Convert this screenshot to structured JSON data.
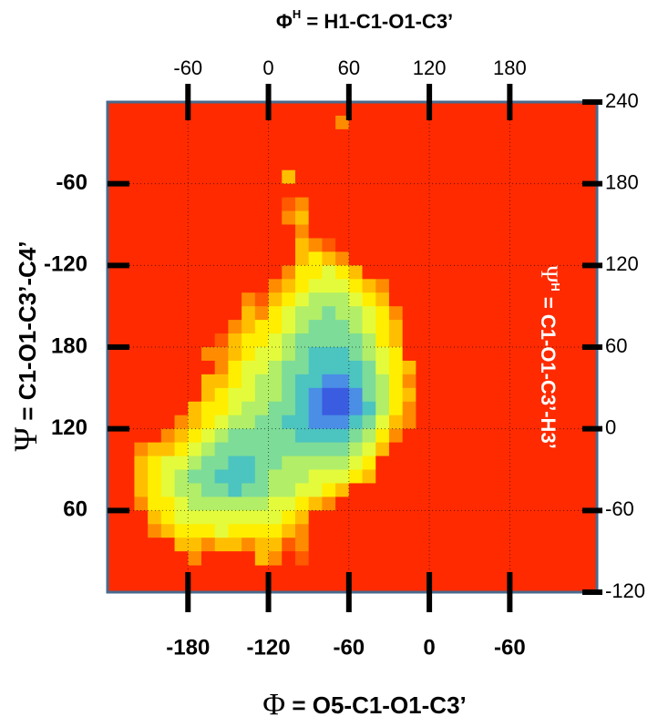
{
  "chart_data": {
    "type": "heatmap",
    "x2label": {
      "symbol": "Φ",
      "sup": "H",
      "rest": " = H1-C1-O1-C3’"
    },
    "xlabel": {
      "symbol": "Φ",
      "rest": " = O5-C1-O1-C3’"
    },
    "ylabel": {
      "symbol": "Ψ",
      "rest": " = C1-O1-C3’-C4’"
    },
    "y2label": {
      "symbol": "Ψ",
      "sup": "H",
      "rest": " = C1-O1-C3’-H3’"
    },
    "xlim": [
      -240,
      125
    ],
    "xticks": [
      -180,
      -120,
      -60,
      0,
      {
        "value": 60,
        "label": "-60"
      }
    ],
    "x2lim": [
      -120,
      245
    ],
    "x2ticks": [
      -60,
      0,
      60,
      120,
      180
    ],
    "ylim": [
      -360,
      0
    ],
    "yticks": [
      -60,
      -120,
      {
        "value": -180,
        "label": "180"
      },
      {
        "value": -240,
        "label": "120"
      },
      {
        "value": -300,
        "label": "60"
      }
    ],
    "y2lim": [
      -120,
      240
    ],
    "y2ticks": [
      240,
      180,
      120,
      60,
      0,
      -60,
      -120
    ],
    "grid": true,
    "colors": [
      "#ff2a00",
      "#ff5a00",
      "#ff8c00",
      "#ffbf00",
      "#ffee00",
      "#e4fb3c",
      "#b2ee68",
      "#7ddc98",
      "#4cc4c0",
      "#4a8ee6",
      "#3a5ce0"
    ],
    "x": [
      -225,
      -215,
      -205,
      -195,
      -185,
      -175,
      -165,
      -155,
      -145,
      -135,
      -125,
      -115,
      -105,
      -95,
      -85,
      -75,
      -65,
      -55,
      -45,
      -35,
      -25,
      -15,
      -5
    ],
    "y": [
      -15,
      -25,
      -35,
      -45,
      -55,
      -65,
      -75,
      -85,
      -95,
      -105,
      -115,
      -125,
      -135,
      -145,
      -155,
      -165,
      -175,
      -185,
      -195,
      -205,
      -215,
      -225,
      -235,
      -245,
      -255,
      -265,
      -275,
      -285,
      -295,
      -305,
      -315,
      -325,
      -335
    ],
    "z": [
      [
        0,
        0,
        0,
        0,
        0,
        0,
        0,
        0,
        0,
        0,
        0,
        0,
        0,
        0,
        0,
        0,
        2,
        0,
        0,
        0,
        0,
        0,
        0
      ],
      [
        0,
        0,
        0,
        0,
        0,
        0,
        0,
        0,
        0,
        0,
        0,
        0,
        0,
        0,
        0,
        0,
        0,
        0,
        0,
        0,
        0,
        0,
        0
      ],
      [
        0,
        0,
        0,
        0,
        0,
        0,
        0,
        0,
        0,
        0,
        0,
        0,
        0,
        0,
        0,
        0,
        0,
        0,
        0,
        0,
        0,
        0,
        0
      ],
      [
        0,
        0,
        0,
        0,
        0,
        0,
        0,
        0,
        0,
        0,
        0,
        0,
        0,
        0,
        0,
        0,
        0,
        0,
        0,
        0,
        0,
        0,
        0
      ],
      [
        0,
        0,
        0,
        0,
        0,
        0,
        0,
        0,
        0,
        0,
        0,
        0,
        3,
        0,
        0,
        0,
        0,
        0,
        0,
        0,
        0,
        0,
        0
      ],
      [
        0,
        0,
        0,
        0,
        0,
        0,
        0,
        0,
        0,
        0,
        0,
        0,
        0,
        0,
        0,
        0,
        0,
        0,
        0,
        0,
        0,
        0,
        0
      ],
      [
        0,
        0,
        0,
        0,
        0,
        0,
        0,
        0,
        0,
        0,
        0,
        0,
        1,
        2,
        0,
        0,
        0,
        0,
        0,
        0,
        0,
        0,
        0
      ],
      [
        0,
        0,
        0,
        0,
        0,
        0,
        0,
        0,
        0,
        0,
        0,
        0,
        2,
        3,
        0,
        0,
        0,
        0,
        0,
        0,
        0,
        0,
        0
      ],
      [
        0,
        0,
        0,
        0,
        0,
        0,
        0,
        0,
        0,
        0,
        0,
        0,
        0,
        2,
        0,
        0,
        0,
        0,
        0,
        0,
        0,
        0,
        0
      ],
      [
        0,
        0,
        0,
        0,
        0,
        0,
        0,
        0,
        0,
        0,
        0,
        0,
        0,
        3,
        2,
        1,
        0,
        0,
        0,
        0,
        0,
        0,
        0
      ],
      [
        0,
        0,
        0,
        0,
        0,
        0,
        0,
        0,
        0,
        0,
        0,
        0,
        0,
        3,
        4,
        3,
        2,
        0,
        0,
        0,
        0,
        0,
        0
      ],
      [
        0,
        0,
        0,
        0,
        0,
        0,
        0,
        0,
        0,
        0,
        0,
        0,
        2,
        4,
        4,
        5,
        4,
        3,
        0,
        0,
        0,
        0,
        0
      ],
      [
        0,
        0,
        0,
        0,
        0,
        0,
        0,
        0,
        0,
        0,
        0,
        2,
        3,
        4,
        5,
        5,
        5,
        4,
        3,
        2,
        0,
        0,
        0
      ],
      [
        0,
        0,
        0,
        0,
        0,
        0,
        0,
        0,
        0,
        2,
        1,
        3,
        4,
        5,
        6,
        6,
        6,
        5,
        4,
        3,
        0,
        0,
        0
      ],
      [
        0,
        0,
        0,
        0,
        0,
        0,
        0,
        0,
        0,
        3,
        2,
        4,
        5,
        6,
        6,
        7,
        6,
        6,
        5,
        4,
        2,
        0,
        0
      ],
      [
        0,
        0,
        0,
        0,
        0,
        0,
        0,
        0,
        2,
        3,
        4,
        4,
        5,
        6,
        7,
        7,
        7,
        6,
        5,
        4,
        3,
        0,
        0
      ],
      [
        0,
        0,
        0,
        0,
        0,
        0,
        0,
        1,
        3,
        4,
        4,
        5,
        6,
        7,
        7,
        7,
        7,
        7,
        6,
        4,
        3,
        0,
        0
      ],
      [
        0,
        0,
        0,
        0,
        0,
        0,
        2,
        2,
        3,
        4,
        5,
        5,
        6,
        7,
        8,
        8,
        8,
        7,
        6,
        5,
        4,
        0,
        0
      ],
      [
        0,
        0,
        0,
        0,
        0,
        0,
        0,
        2,
        4,
        5,
        5,
        6,
        7,
        7,
        8,
        8,
        8,
        8,
        7,
        5,
        4,
        3,
        0
      ],
      [
        0,
        0,
        0,
        0,
        0,
        0,
        3,
        3,
        4,
        5,
        6,
        6,
        7,
        8,
        8,
        9,
        9,
        8,
        7,
        6,
        4,
        2,
        0
      ],
      [
        0,
        0,
        0,
        0,
        0,
        0,
        3,
        4,
        5,
        5,
        6,
        6,
        7,
        8,
        9,
        10,
        10,
        9,
        7,
        6,
        4,
        3,
        0
      ],
      [
        0,
        0,
        0,
        0,
        0,
        3,
        4,
        4,
        5,
        6,
        6,
        7,
        7,
        8,
        9,
        10,
        10,
        9,
        8,
        6,
        4,
        2,
        0
      ],
      [
        0,
        0,
        0,
        0,
        2,
        3,
        4,
        5,
        6,
        6,
        7,
        7,
        8,
        8,
        9,
        9,
        9,
        8,
        7,
        5,
        3,
        2,
        0
      ],
      [
        0,
        0,
        0,
        2,
        3,
        4,
        5,
        6,
        7,
        7,
        7,
        7,
        7,
        8,
        8,
        8,
        8,
        7,
        6,
        4,
        2,
        0,
        0
      ],
      [
        0,
        2,
        3,
        3,
        4,
        5,
        6,
        7,
        7,
        7,
        7,
        7,
        7,
        7,
        7,
        7,
        7,
        6,
        5,
        3,
        0,
        0,
        0
      ],
      [
        0,
        3,
        4,
        5,
        5,
        6,
        7,
        7,
        8,
        8,
        7,
        7,
        6,
        6,
        6,
        6,
        6,
        5,
        4,
        0,
        0,
        0,
        0
      ],
      [
        0,
        3,
        4,
        5,
        6,
        7,
        7,
        8,
        8,
        8,
        7,
        6,
        6,
        6,
        5,
        5,
        5,
        4,
        3,
        0,
        0,
        0,
        0
      ],
      [
        0,
        3,
        4,
        5,
        6,
        6,
        7,
        7,
        8,
        7,
        7,
        6,
        6,
        5,
        5,
        4,
        3,
        0,
        0,
        0,
        0,
        0,
        0
      ],
      [
        0,
        2,
        4,
        4,
        5,
        6,
        6,
        6,
        6,
        6,
        6,
        5,
        5,
        4,
        3,
        2,
        0,
        0,
        0,
        0,
        0,
        0,
        0
      ],
      [
        0,
        0,
        3,
        4,
        5,
        5,
        5,
        5,
        5,
        5,
        5,
        5,
        4,
        3,
        0,
        0,
        0,
        0,
        0,
        0,
        0,
        0,
        0
      ],
      [
        0,
        0,
        2,
        3,
        4,
        4,
        4,
        5,
        4,
        4,
        4,
        4,
        3,
        2,
        0,
        0,
        0,
        0,
        0,
        0,
        0,
        0,
        0
      ],
      [
        0,
        0,
        0,
        0,
        3,
        3,
        2,
        3,
        3,
        2,
        3,
        3,
        1,
        2,
        0,
        0,
        0,
        0,
        0,
        0,
        0,
        0,
        0
      ],
      [
        0,
        0,
        0,
        0,
        0,
        2,
        0,
        0,
        0,
        0,
        3,
        2,
        0,
        1,
        0,
        0,
        0,
        0,
        0,
        0,
        0,
        0,
        0
      ]
    ]
  }
}
